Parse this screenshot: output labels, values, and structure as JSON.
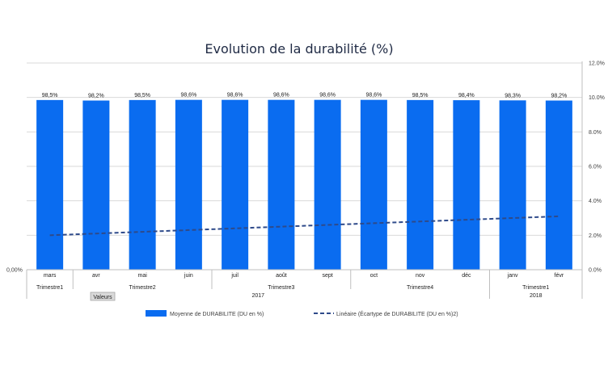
{
  "chart_data": {
    "type": "bar",
    "title": "Evolution de la durabilité (%)",
    "categories": [
      "mars",
      "avr",
      "mai",
      "juin",
      "juil",
      "août",
      "sept",
      "oct",
      "nov",
      "déc",
      "janv",
      "févr"
    ],
    "quarters": [
      {
        "label": "Trimestre1",
        "count": 1
      },
      {
        "label": "Trimestre2",
        "count": 3
      },
      {
        "label": "Trimestre3",
        "count": 3
      },
      {
        "label": "Trimestre4",
        "count": 3
      },
      {
        "label": "Trimestre1",
        "count": 2
      }
    ],
    "years": [
      {
        "label": "2017",
        "count": 10
      },
      {
        "label": "2018",
        "count": 2
      }
    ],
    "series": [
      {
        "name": "Moyenne de DURABILITE (DU en %)",
        "kind": "bar",
        "axis": "left",
        "color": "#0a6cf0",
        "values": [
          98.5,
          98.2,
          98.5,
          98.6,
          98.6,
          98.6,
          98.6,
          98.6,
          98.5,
          98.4,
          98.3,
          98.2
        ],
        "labels": [
          "98,5%",
          "98,2%",
          "98,5%",
          "98,6%",
          "98,6%",
          "98,6%",
          "98,6%",
          "98,6%",
          "98,5%",
          "98,4%",
          "98,3%",
          "98,2%"
        ]
      },
      {
        "name": "Linéaire (Écartype de DURABILITE (DU en %)2)",
        "kind": "trendline",
        "axis": "right",
        "color": "#2e4a8a",
        "values": [
          2.0,
          2.1,
          2.2,
          2.3,
          2.4,
          2.5,
          2.6,
          2.7,
          2.8,
          2.9,
          3.0,
          3.1
        ]
      }
    ],
    "left_axis": {
      "ylim": [
        0,
        100
      ],
      "tick_labels": [
        "0,00%"
      ]
    },
    "right_axis": {
      "ylim": [
        0,
        12
      ],
      "ticks": [
        0,
        2,
        4,
        6,
        8,
        10,
        12
      ],
      "tick_labels": [
        "0.0%",
        "2.0%",
        "4.0%",
        "6.0%",
        "8.0%",
        "10.0%",
        "12.0%"
      ]
    },
    "grid": true,
    "legend": "bottom",
    "filter_button": "Valeurs"
  }
}
